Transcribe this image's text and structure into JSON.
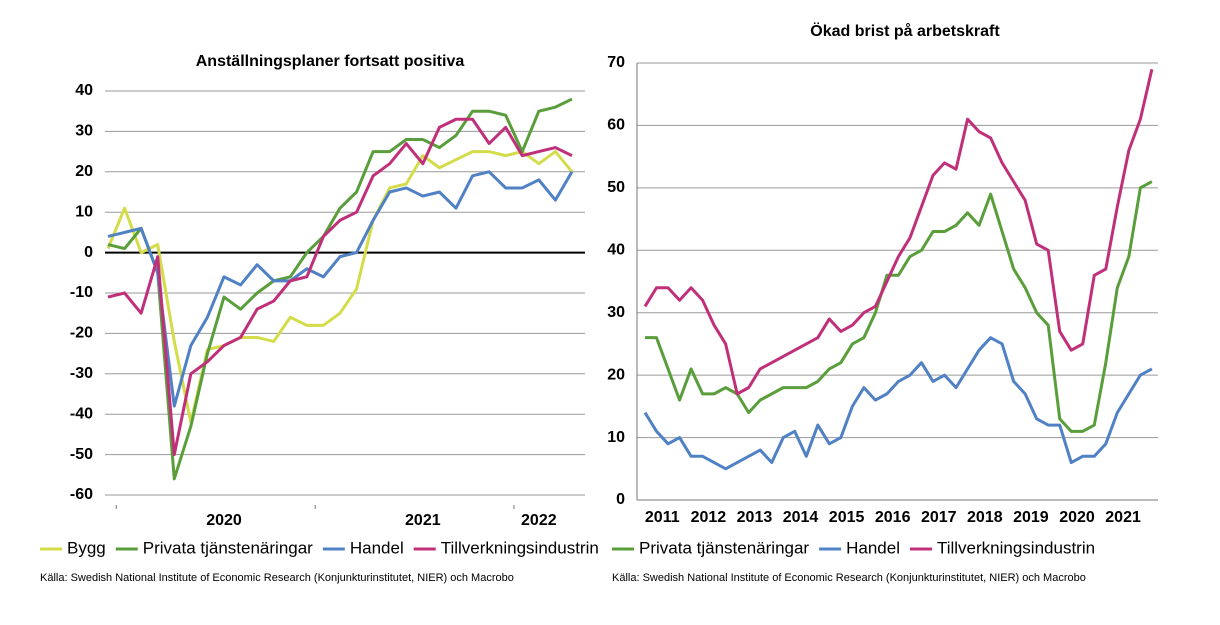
{
  "chart_data": [
    {
      "type": "line",
      "title": "Anställningsplaner fortsatt positiva",
      "categories": [
        null,
        null,
        null,
        null,
        null,
        null,
        null,
        "2020",
        null,
        null,
        null,
        null,
        null,
        null,
        null,
        null,
        null,
        null,
        null,
        "2021",
        null,
        null,
        null,
        null,
        null,
        null,
        "2022",
        null,
        null
      ],
      "series": [
        {
          "name": "Bygg",
          "color": "#d4dc4a",
          "values": [
            1,
            11,
            0,
            2,
            -22,
            -42,
            -24,
            -23,
            -21,
            -21,
            -22,
            -16,
            -18,
            -18,
            -15,
            -9,
            8,
            16,
            17,
            24,
            21,
            23,
            25,
            25,
            24,
            25,
            22,
            25,
            20
          ]
        },
        {
          "name": "Privata tjänstenäringar",
          "color": "#5a9e3c",
          "values": [
            2,
            1,
            6,
            -5,
            -56,
            -43,
            -25,
            -11,
            -14,
            -10,
            -7,
            -6,
            0,
            4,
            11,
            15,
            25,
            25,
            28,
            28,
            26,
            29,
            35,
            35,
            34,
            25,
            35,
            36,
            38
          ]
        },
        {
          "name": "Handel",
          "color": "#4f81c4",
          "values": [
            4,
            5,
            6,
            -5,
            -38,
            -23,
            -16,
            -6,
            -8,
            -3,
            -7,
            -7,
            -4,
            -6,
            -1,
            0,
            8,
            15,
            16,
            14,
            15,
            11,
            19,
            20,
            16,
            16,
            18,
            13,
            20
          ]
        },
        {
          "name": "Tillverkningsindustrin",
          "color": "#c0307a",
          "values": [
            -11,
            -10,
            -15,
            -1,
            -50,
            -30,
            -27,
            -23,
            -21,
            -14,
            -12,
            -7,
            -6,
            4,
            8,
            10,
            19,
            22,
            27,
            22,
            31,
            33,
            33,
            27,
            31,
            24,
            25,
            26,
            24
          ]
        }
      ],
      "ylim": [
        -60,
        40
      ],
      "yticks": [
        -60,
        -50,
        -40,
        -30,
        -20,
        -10,
        0,
        10,
        20,
        30,
        40
      ],
      "grid": true,
      "zero_line": true,
      "source": "Källa: Swedish National Institute of Economic Research (Konjunkturinstitutet, NIER) och Macrobo"
    },
    {
      "type": "line",
      "title": "Ökad brist på arbetskraft",
      "categories": [
        null,
        "2011",
        null,
        null,
        null,
        "2012",
        null,
        null,
        null,
        "2013",
        null,
        null,
        null,
        "2014",
        null,
        null,
        null,
        "2015",
        null,
        null,
        null,
        "2016",
        null,
        null,
        null,
        "2017",
        null,
        null,
        null,
        "2018",
        null,
        null,
        null,
        "2019",
        null,
        null,
        null,
        "2020",
        null,
        null,
        null,
        "2021",
        null,
        null,
        null
      ],
      "series": [
        {
          "name": "Privata tjänstenäringar",
          "color": "#5a9e3c",
          "values": [
            26,
            26,
            21,
            16,
            21,
            17,
            17,
            18,
            17,
            14,
            16,
            17,
            18,
            18,
            18,
            19,
            21,
            22,
            25,
            26,
            30,
            36,
            36,
            39,
            40,
            43,
            43,
            44,
            46,
            44,
            49,
            43,
            37,
            34,
            30,
            28,
            13,
            11,
            11,
            12,
            22,
            34,
            39,
            50,
            51
          ]
        },
        {
          "name": "Handel",
          "color": "#4f81c4",
          "values": [
            14,
            11,
            9,
            10,
            7,
            7,
            6,
            5,
            6,
            7,
            8,
            6,
            10,
            11,
            7,
            12,
            9,
            10,
            15,
            18,
            16,
            17,
            19,
            20,
            22,
            19,
            20,
            18,
            21,
            24,
            26,
            25,
            19,
            17,
            13,
            12,
            12,
            6,
            7,
            7,
            9,
            14,
            17,
            20,
            21
          ]
        },
        {
          "name": "Tillverkningsindustrin",
          "color": "#c0307a",
          "values": [
            31,
            34,
            34,
            32,
            34,
            32,
            28,
            25,
            17,
            18,
            21,
            22,
            23,
            24,
            25,
            26,
            29,
            27,
            28,
            30,
            31,
            35,
            39,
            42,
            47,
            52,
            54,
            53,
            61,
            59,
            58,
            54,
            51,
            48,
            41,
            40,
            27,
            24,
            25,
            36,
            37,
            47,
            56,
            61,
            69
          ]
        }
      ],
      "ylim": [
        0,
        70
      ],
      "yticks": [
        0,
        10,
        20,
        30,
        40,
        50,
        60,
        70
      ],
      "grid": true,
      "zero_line": false,
      "source": "Källa: Swedish National Institute of Economic Research (Konjunkturinstitutet, NIER) och Macrobo"
    }
  ]
}
